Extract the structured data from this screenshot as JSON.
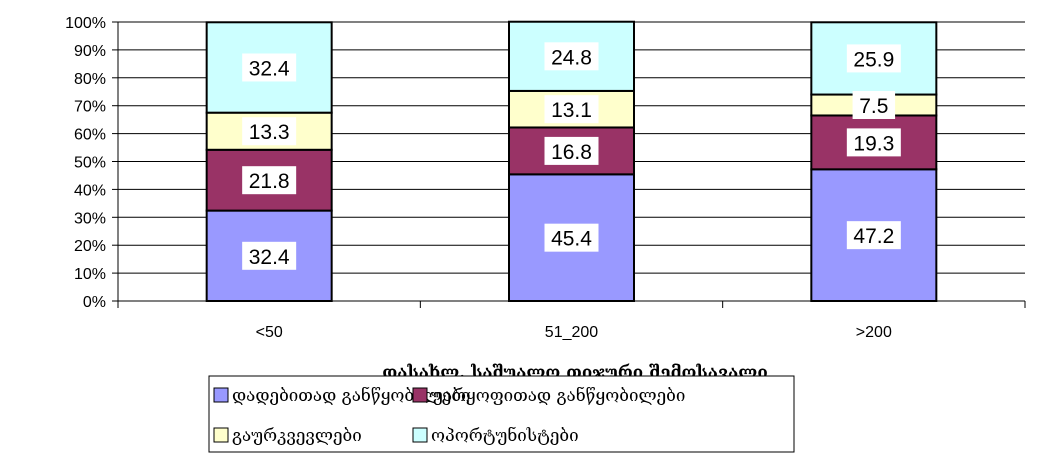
{
  "chart_data": {
    "type": "bar",
    "stacked": true,
    "percent": true,
    "categories": [
      "<50",
      "51_200",
      ">200"
    ],
    "series": [
      {
        "name": "დადებითად განწყობილები",
        "color": "#9999ff",
        "values": [
          32.4,
          45.4,
          47.2
        ]
      },
      {
        "name": "უარყოფითად განწყობილები",
        "color": "#993366",
        "values": [
          21.8,
          16.8,
          19.3
        ]
      },
      {
        "name": "გაურკვევლები",
        "color": "#ffffcc",
        "values": [
          13.3,
          13.1,
          7.5
        ]
      },
      {
        "name": "ოპორტუნისტები",
        "color": "#ccffff",
        "values": [
          32.4,
          24.8,
          25.9
        ]
      }
    ],
    "yticks": [
      "0%",
      "10%",
      "20%",
      "30%",
      "40%",
      "50%",
      "60%",
      "70%",
      "80%",
      "90%",
      "100%"
    ],
    "ylim": [
      0,
      100
    ],
    "xlabel": "დასახლ. საშუალო თიჯური შემოსავალი",
    "ylabel": "",
    "legend": "bottom",
    "grid": true
  }
}
